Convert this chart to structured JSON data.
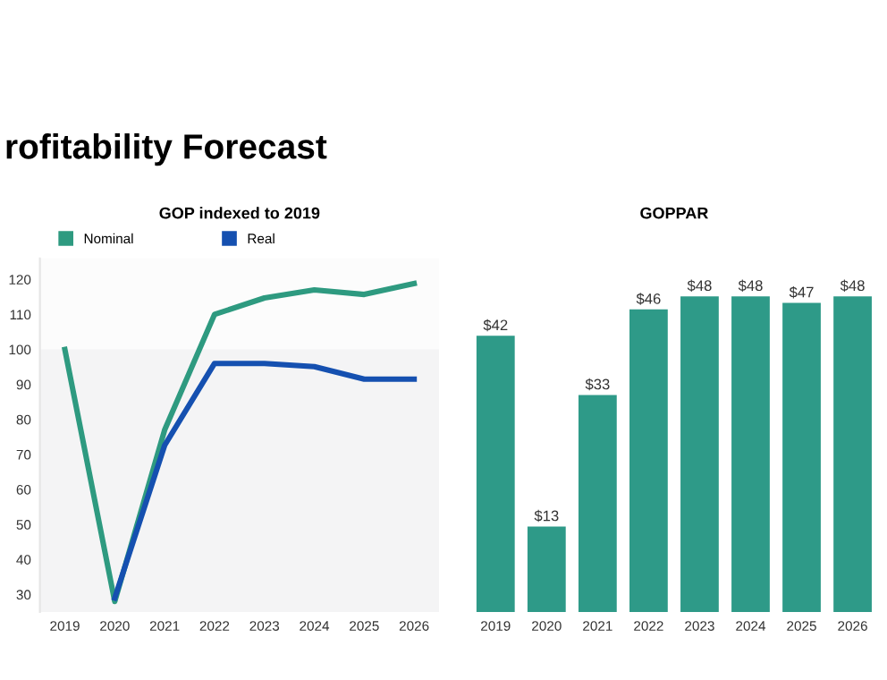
{
  "chart_data": [
    {
      "type": "line",
      "title": "GOP indexed to 2019",
      "annotations": [
        "rofitability Forecast"
      ],
      "categories": [
        "2019",
        "2020",
        "2021",
        "2022",
        "2023",
        "2024",
        "2025",
        "2026"
      ],
      "series": [
        {
          "name": "Nominal",
          "color": "#2e9a80",
          "values": [
            100,
            28,
            77,
            110,
            114.7,
            117,
            115.7,
            118.8
          ]
        },
        {
          "name": "Real",
          "color": "#1550b0",
          "values": [
            null,
            29,
            72.6,
            96,
            96,
            95.1,
            91.5,
            91.5
          ]
        }
      ],
      "ylim": [
        25,
        126
      ],
      "yticks": [
        30,
        40,
        50,
        60,
        70,
        80,
        90,
        100,
        110,
        120
      ],
      "bands": [
        {
          "axis": "y",
          "from": 25,
          "to": 100,
          "color": "#f4f4f5"
        }
      ],
      "legend": "top left",
      "grid": false,
      "marker": "none",
      "line_style": "solid"
    },
    {
      "type": "bar",
      "title": "GOPPAR",
      "categories": [
        "2019",
        "2020",
        "2021",
        "2022",
        "2023",
        "2024",
        "2025",
        "2026"
      ],
      "values": [
        42,
        13,
        33,
        46,
        48,
        48,
        47,
        48
      ],
      "color": "#2e9a88",
      "value_labels": [
        "$42",
        "$13",
        "$33",
        "$46",
        "$48",
        "$48",
        "$47",
        "$48"
      ],
      "tick_labels": "x"
    }
  ]
}
